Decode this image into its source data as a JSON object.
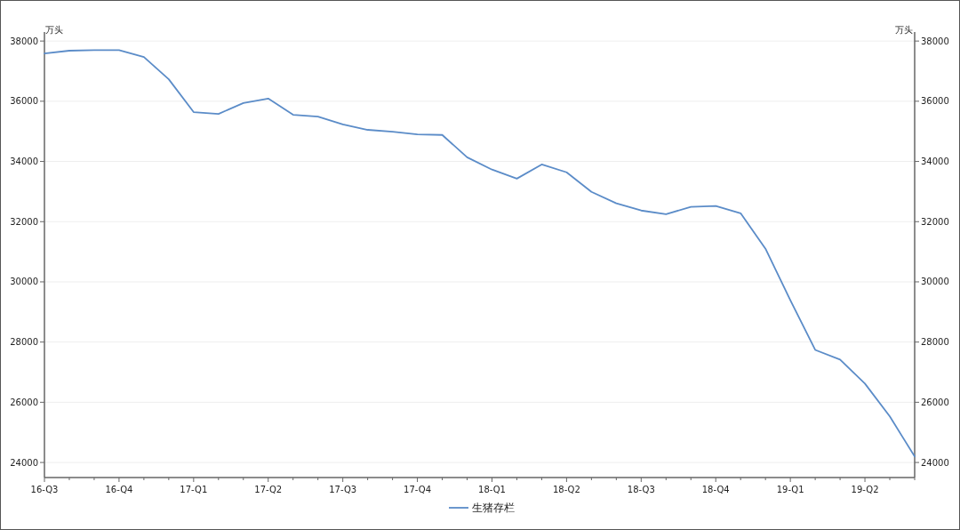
{
  "chart_data": {
    "type": "line",
    "categories": [
      "16-Q3",
      null,
      null,
      "16-Q4",
      null,
      null,
      "17-Q1",
      null,
      null,
      "17-Q2",
      null,
      null,
      "17-Q3",
      null,
      null,
      "17-Q4",
      null,
      null,
      "18-Q1",
      null,
      null,
      "18-Q2",
      null,
      null,
      "18-Q3",
      null,
      null,
      "18-Q4",
      null,
      null,
      "19-Q1",
      null,
      null,
      "19-Q2",
      null,
      null
    ],
    "series": [
      {
        "name": "生猪存栏",
        "color": "#5b8cc8",
        "values": [
          37590,
          37680,
          37700,
          37700,
          37470,
          36730,
          35640,
          35580,
          35940,
          36090,
          35550,
          35490,
          35230,
          35050,
          34990,
          34900,
          34880,
          34140,
          33730,
          33430,
          33900,
          33640,
          32990,
          32610,
          32370,
          32250,
          32490,
          32520,
          32280,
          31100,
          29390,
          27740,
          27420,
          26620,
          25530,
          24200
        ]
      }
    ],
    "ylabel": "万头",
    "y2label": "万头",
    "ylim": [
      23500,
      38300
    ],
    "yticks": [
      24000,
      26000,
      28000,
      30000,
      32000,
      34000,
      36000,
      38000
    ],
    "y2lim": [
      23500,
      38300
    ],
    "y2ticks": [
      24000,
      26000,
      28000,
      30000,
      32000,
      34000,
      36000,
      38000
    ],
    "grid": "y",
    "legend": "bottom",
    "marker": "none",
    "line_style": "solid"
  }
}
